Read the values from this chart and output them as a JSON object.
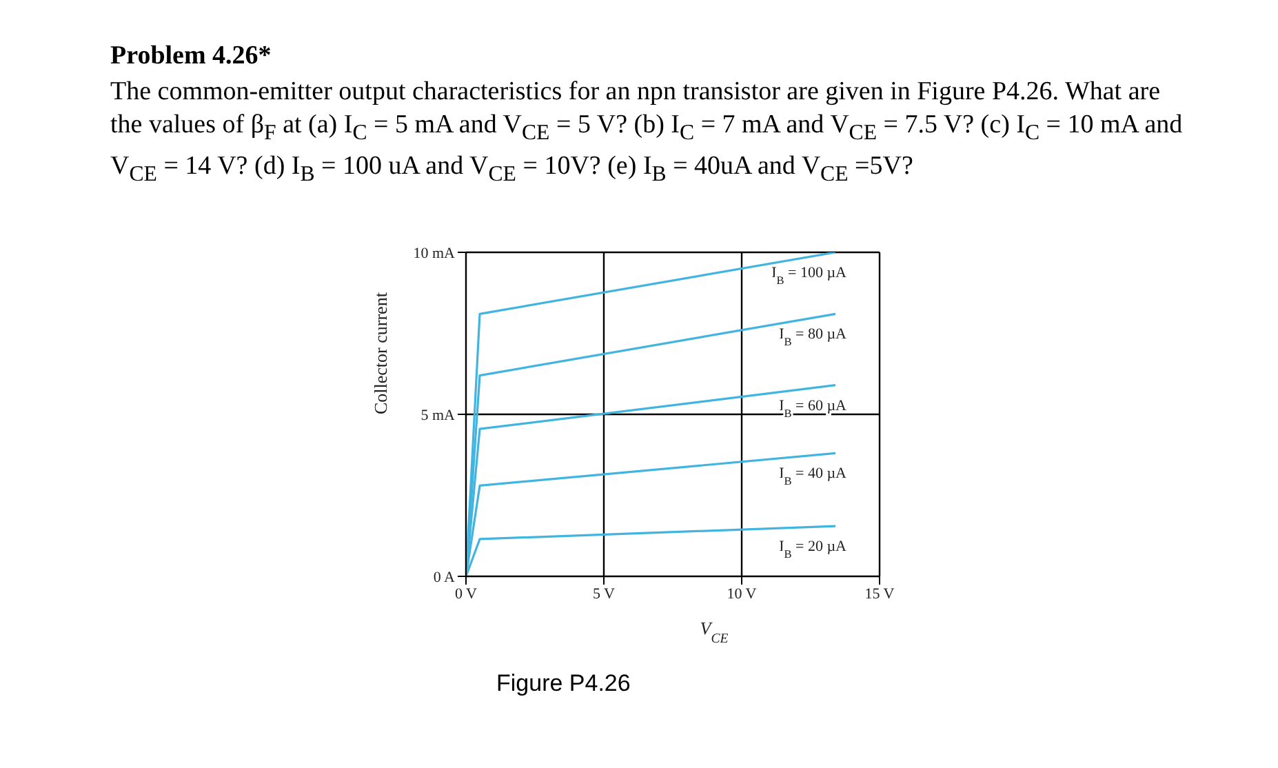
{
  "chart_data": {
    "type": "line",
    "title": "Problem 4.26*",
    "subtitle": "The common-emitter output characteristics for an npn transistor are given in Figure P4.26. What are the values of β$_{F}$ at (a) I$_{C}$ = 5 mA and V$_{CE}$ = 5 V? (b) I$_{C}$ = 7 mA and V$_{CE}$ = 7.5 V? (c) I$_{C}$ = 10 mA and V$_{CE}$ = 14 V? (d) I$_{B}$ = 100 uA and V$_{CE}$ = 10V? (e) I$_{B}$ = 40uA and V$_{CE}$ =5V?",
    "xlabel": "V$_{CE}$",
    "ylabel": "Collector current",
    "annotations": [
      "Figure P4.26"
    ],
    "series": [
      {
        "name": "I$_{B}$ = 100 µA",
        "color": "#41b4e0",
        "x": [
          0,
          0.5,
          13.4
        ],
        "values": [
          0,
          8.1,
          10.0
        ]
      },
      {
        "name": "I$_{B}$ = 80 µA",
        "color": "#41b4e0",
        "x": [
          0,
          0.5,
          13.4
        ],
        "values": [
          0,
          6.2,
          8.1
        ]
      },
      {
        "name": "I$_{B}$ = 60 µA",
        "color": "#41b4e0",
        "x": [
          0,
          0.5,
          13.4
        ],
        "values": [
          0,
          4.55,
          5.9
        ]
      },
      {
        "name": "I$_{B}$ = 40 µA",
        "color": "#41b4e0",
        "x": [
          0,
          0.5,
          13.4
        ],
        "values": [
          0,
          2.8,
          3.8
        ]
      },
      {
        "name": "I$_{B}$ = 20 µA",
        "color": "#41b4e0",
        "x": [
          0,
          0.5,
          13.4
        ],
        "values": [
          0,
          1.15,
          1.55
        ]
      }
    ],
    "xlim": [
      0,
      15
    ],
    "xticks": [
      {
        "value": 0,
        "label": "0 V"
      },
      {
        "value": 5,
        "label": "5 V"
      },
      {
        "value": 10,
        "label": "10 V"
      },
      {
        "value": 15,
        "label": "15 V"
      }
    ],
    "ylim": [
      0,
      10
    ],
    "yticks": [
      {
        "value": 0,
        "label": "0 A"
      },
      {
        "value": 5,
        "label": "5 mA"
      },
      {
        "value": 10,
        "label": "10 mA"
      }
    ],
    "grid": true,
    "marker": "none",
    "line_style": "solid"
  }
}
